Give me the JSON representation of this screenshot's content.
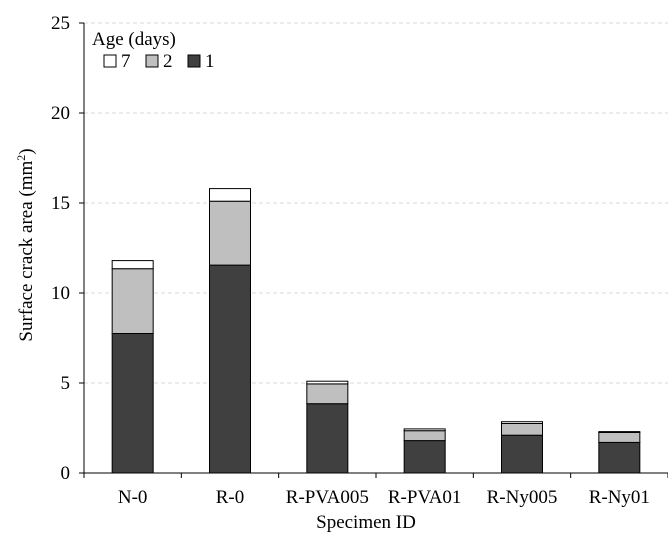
{
  "chart_data": {
    "type": "bar",
    "stacked": true,
    "categories": [
      "N-0",
      "R-0",
      "R-PVA005",
      "R-PVA01",
      "R-Ny005",
      "R-Ny01"
    ],
    "series": [
      {
        "name": "1",
        "color": "#404040",
        "values": [
          7.75,
          11.55,
          3.85,
          1.8,
          2.1,
          1.7
        ]
      },
      {
        "name": "2",
        "color": "#bfbfbf",
        "values": [
          3.6,
          3.55,
          1.1,
          0.55,
          0.65,
          0.55
        ]
      },
      {
        "name": "7",
        "color": "#ffffff",
        "values": [
          0.45,
          0.7,
          0.15,
          0.1,
          0.1,
          0.05
        ]
      }
    ],
    "legend_order": [
      "7",
      "2",
      "1"
    ],
    "legend_title": "Age (days)",
    "legend_position": "top-left",
    "xlabel": "Specimen ID",
    "ylabel_main": "Surface crack area (mm",
    "ylabel_sup": "2",
    "ylabel_end": ")",
    "ylim": [
      0,
      25
    ],
    "yticks": [
      0,
      5,
      10,
      15,
      20,
      25
    ],
    "grid": "horizontal dashed"
  }
}
